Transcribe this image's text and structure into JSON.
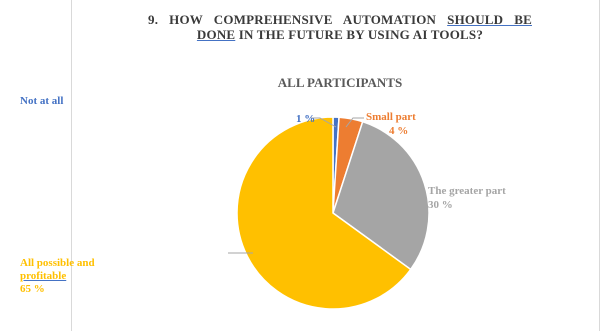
{
  "chart_data": {
    "type": "pie",
    "title_parts": [
      "9. HOW COMPREHENSIVE AUTOMATION ",
      "SHOULD BE DONE",
      " IN THE FUTURE BY USING AI TOOLS?"
    ],
    "subtitle": "ALL PARTICIPANTS",
    "slices": [
      {
        "label": "Not at all",
        "value": 1,
        "value_text": "1 %",
        "color": "#4472c4"
      },
      {
        "label": "Small part",
        "value": 4,
        "value_text": "4 %",
        "color": "#ed7d31"
      },
      {
        "label": "The greater part",
        "value": 30,
        "value_text": "30 %",
        "color": "#a5a5a5"
      },
      {
        "label": "All possible and profitable",
        "label_line1": "All possible and",
        "label_line2": "profitable",
        "value": 65,
        "value_text": "65 %",
        "color": "#ffc000"
      }
    ],
    "legend": "none"
  }
}
